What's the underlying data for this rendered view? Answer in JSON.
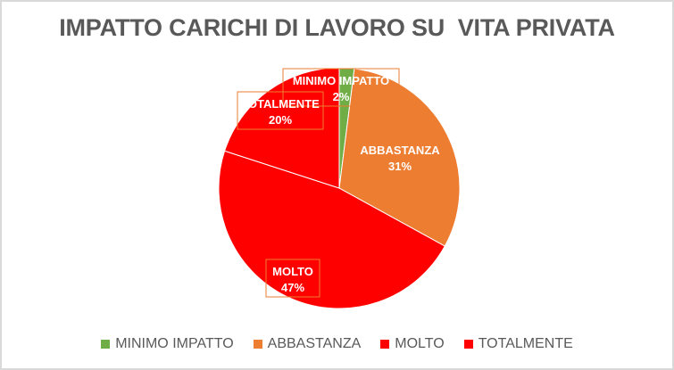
{
  "chart_data": {
    "type": "pie",
    "title": "IMPATTO CARICHI DI LAVORO SU  VITA PRIVATA",
    "slices": [
      {
        "label": "MINIMO IMPATTO",
        "value": 2,
        "value_label": "2%",
        "color": "#70ad47"
      },
      {
        "label": "ABBASTANZA",
        "value": 31,
        "value_label": "31%",
        "color": "#ed7d31"
      },
      {
        "label": "MOLTO",
        "value": 47,
        "value_label": "47%",
        "color": "#ff0000"
      },
      {
        "label": "TOTALMENTE",
        "value": 20,
        "value_label": "20%",
        "color": "#ff0000"
      }
    ],
    "legend_position": "bottom",
    "start_angle": "12 o'clock, clockwise"
  }
}
